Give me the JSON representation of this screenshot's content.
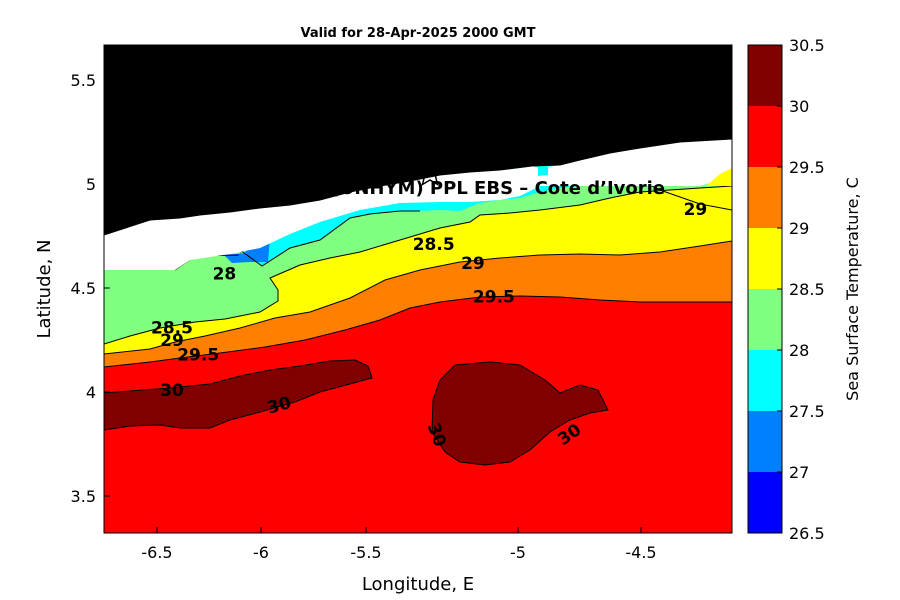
{
  "chart_data": {
    "type": "contour",
    "title": "Valid for 28-Apr-2025 2000 GMT",
    "xlabel": "Longitude, E",
    "ylabel": "Latitude, N",
    "xlim": [
      -6.6,
      -4.2
    ],
    "ylim": [
      3.33,
      5.67
    ],
    "xticks": [
      "-6.5",
      "-6",
      "-5.5",
      "-5",
      "-4.5"
    ],
    "yticks": [
      "3.5",
      "4",
      "4.5",
      "5",
      "5.5"
    ],
    "site_label": "A (ONHYM) PPL EBS  – Cote d’Ivorie",
    "site_marker": {
      "lon": -5.34,
      "lat": 5.05
    },
    "contour_labels": [
      {
        "text": "28",
        "lon": -6.14,
        "lat": 4.57,
        "angle": 0
      },
      {
        "text": "28.5",
        "lon": -6.34,
        "lat": 4.31,
        "angle": 0
      },
      {
        "text": "29",
        "lon": -6.34,
        "lat": 4.25,
        "angle": 0
      },
      {
        "text": "29.5",
        "lon": -6.24,
        "lat": 4.18,
        "angle": 0
      },
      {
        "text": "30",
        "lon": -6.34,
        "lat": 4.01,
        "angle": 0
      },
      {
        "text": "30",
        "lon": -5.93,
        "lat": 3.94,
        "angle": -15
      },
      {
        "text": "28.5",
        "lon": -5.34,
        "lat": 4.71,
        "angle": 0
      },
      {
        "text": "29",
        "lon": -5.19,
        "lat": 4.62,
        "angle": 0
      },
      {
        "text": "29.5",
        "lon": -5.11,
        "lat": 4.46,
        "angle": 0
      },
      {
        "text": "30",
        "lon": -5.33,
        "lat": 3.8,
        "angle": 70
      },
      {
        "text": "30",
        "lon": -4.82,
        "lat": 3.8,
        "angle": -35
      },
      {
        "text": "29",
        "lon": -4.34,
        "lat": 4.88,
        "angle": 0
      }
    ],
    "colorbar": {
      "label": "Sea Surface Temperature, C",
      "levels": [
        26.5,
        27,
        27.5,
        28,
        28.5,
        29,
        29.5,
        30,
        30.5
      ],
      "tick_labels": [
        "26.5",
        "27",
        "27.5",
        "28",
        "28.5",
        "29",
        "29.5",
        "30",
        "30.5"
      ],
      "colors": [
        "#0000ff",
        "#0080ff",
        "#00ffff",
        "#80ff80",
        "#ffff00",
        "#ff8000",
        "#ff0000",
        "#800000"
      ]
    },
    "land_color": "#000000",
    "nodata_color": "#ffffff",
    "fields": [
      {
        "band": "27-27.5",
        "color": "#0080ff",
        "outline": [
          [
            -6.22,
            4.61
          ],
          [
            -6.1,
            4.62
          ],
          [
            -6.08,
            4.57
          ],
          [
            -6.0,
            4.54
          ],
          [
            -6.02,
            4.6
          ],
          [
            -6.08,
            4.6
          ],
          [
            -6.15,
            4.55
          ],
          [
            -6.22,
            4.58
          ]
        ]
      },
      {
        "band": "26.5-27",
        "color": "#0000ff",
        "outline": [
          [
            -6.2,
            4.6
          ],
          [
            -6.1,
            4.61
          ],
          [
            -6.12,
            4.57
          ],
          [
            -6.18,
            4.58
          ]
        ]
      },
      {
        "band": "30-30.5 west",
        "color": "#800000",
        "outline": [
          [
            -6.6,
            4.0
          ],
          [
            -6.4,
            4.02
          ],
          [
            -6.2,
            3.99
          ],
          [
            -6.05,
            4.05
          ],
          [
            -5.9,
            4.08
          ],
          [
            -5.73,
            4.1
          ],
          [
            -5.65,
            4.09
          ],
          [
            -5.6,
            4.05
          ],
          [
            -5.73,
            4.0
          ],
          [
            -5.9,
            3.95
          ],
          [
            -6.0,
            3.91
          ],
          [
            -6.06,
            3.87
          ],
          [
            -6.2,
            3.86
          ],
          [
            -6.35,
            3.87
          ],
          [
            -6.45,
            3.89
          ],
          [
            -6.6,
            3.86
          ]
        ]
      },
      {
        "band": "30-30.5 east",
        "color": "#800000",
        "outline": [
          [
            -5.3,
            4.12
          ],
          [
            -5.15,
            4.12
          ],
          [
            -5.03,
            4.05
          ],
          [
            -4.95,
            3.93
          ],
          [
            -4.85,
            3.93
          ],
          [
            -4.7,
            3.94
          ],
          [
            -4.66,
            3.85
          ],
          [
            -4.8,
            3.84
          ],
          [
            -4.9,
            3.8
          ],
          [
            -5.05,
            3.65
          ],
          [
            -5.25,
            3.65
          ],
          [
            -5.35,
            3.77
          ],
          [
            -5.36,
            3.92
          ],
          [
            -5.34,
            4.02
          ]
        ]
      }
    ]
  }
}
